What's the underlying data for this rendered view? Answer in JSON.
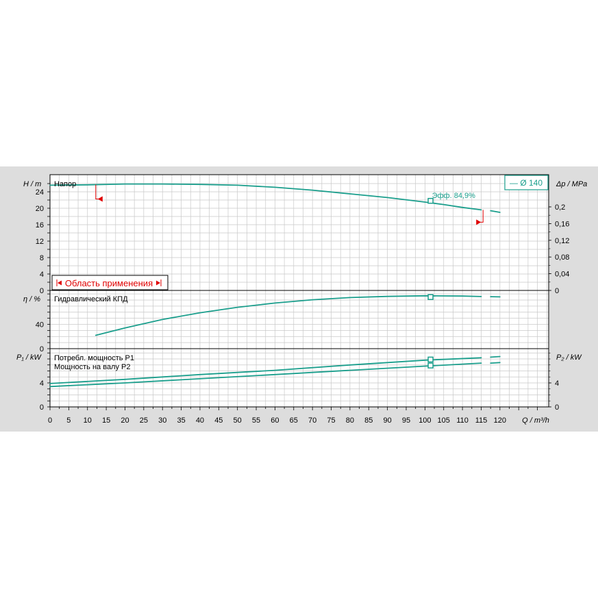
{
  "colors": {
    "panel_bg": "#dddddd",
    "plot_bg": "#ffffff",
    "grid": "#c8c8c8",
    "axis": "#000000",
    "curve": "#1a9e8c",
    "range_marker": "#e00000"
  },
  "chart_data": {
    "type": "line",
    "x_axis": {
      "label": "Q / m³/h",
      "ticks": [
        0,
        5,
        10,
        15,
        20,
        25,
        30,
        35,
        40,
        45,
        50,
        55,
        60,
        65,
        70,
        75,
        80,
        85,
        90,
        95,
        100,
        105,
        110,
        115,
        120
      ],
      "xlim": [
        0,
        133
      ]
    },
    "legend": {
      "label": "— Ø 140",
      "placement": "top-right"
    },
    "panels": [
      {
        "id": "head",
        "title": "Напор",
        "y_left_label": "H / m",
        "y_left_ticks": [
          0,
          4,
          8,
          12,
          16,
          20,
          24
        ],
        "y_right_label": "Δp / MPa",
        "y_right_ticks": [
          "0",
          "0,04",
          "0,08",
          "0,12",
          "0,16",
          "0,2"
        ],
        "ylim": [
          0,
          26.5
        ],
        "series": [
          {
            "name": "Ø 140",
            "x": [
              0,
              10,
              20,
              30,
              40,
              50,
              60,
              70,
              80,
              90,
              100,
              105,
              110,
              115
            ],
            "y": [
              25.6,
              25.7,
              25.9,
              25.9,
              25.8,
              25.6,
              25.1,
              24.4,
              23.5,
              22.6,
              21.5,
              20.9,
              20.2,
              19.6
            ]
          },
          {
            "name": "",
            "x": [
              117.5,
              120
            ],
            "y": [
              19.4,
              19.0
            ]
          }
        ],
        "operating_point": {
          "x": 101.5,
          "y": 21.8,
          "label": "Эфф.  84,9%"
        },
        "application_range": {
          "label": "Область применения",
          "q_min": 12.2,
          "q_max": 115.5
        }
      },
      {
        "id": "efficiency",
        "title": "Гидравлический КПД",
        "y_left_label": "η / %",
        "y_left_ticks": [
          0,
          40
        ],
        "ylim": [
          0,
          94
        ],
        "series": [
          {
            "name": "",
            "x": [
              12.2,
              20,
              30,
              40,
              50,
              60,
              70,
              80,
              90,
              100,
              105,
              110,
              115
            ],
            "y": [
              22,
              34,
              48,
              59,
              68,
              75,
              80.5,
              84,
              86,
              87,
              86.8,
              86.5,
              85.8
            ]
          },
          {
            "name": "",
            "x": [
              117.5,
              120
            ],
            "y": [
              85.5,
              85.2
            ]
          }
        ],
        "operating_point": {
          "x": 101.5,
          "y": 84.9
        }
      },
      {
        "id": "power",
        "title": "",
        "series_labels": [
          "Потребл. мощность P1",
          "Мощность на валу P2"
        ],
        "y_left_label": "P₁ / kW",
        "y_left_ticks": [
          0,
          4
        ],
        "y_right_label": "P₂ / kW",
        "y_right_ticks": [
          "0",
          "4"
        ],
        "ylim": [
          0,
          9.5
        ],
        "series": [
          {
            "name": "Потребл. мощность P1",
            "x": [
              0,
              20,
              40,
              60,
              80,
              100,
              115
            ],
            "y": [
              3.9,
              4.6,
              5.4,
              6.1,
              7.0,
              7.8,
              8.2
            ]
          },
          {
            "name": "",
            "x": [
              117.5,
              120
            ],
            "y": [
              8.3,
              8.4
            ]
          },
          {
            "name": "Мощность на валу P2",
            "x": [
              0,
              20,
              40,
              60,
              80,
              100,
              115
            ],
            "y": [
              3.4,
              4.0,
              4.7,
              5.4,
              6.1,
              6.8,
              7.3
            ]
          },
          {
            "name": "",
            "x": [
              117.5,
              120
            ],
            "y": [
              7.3,
              7.4
            ]
          }
        ],
        "operating_points": [
          {
            "x": 101.5,
            "y": 7.9
          },
          {
            "x": 101.5,
            "y": 6.9
          }
        ]
      }
    ]
  }
}
